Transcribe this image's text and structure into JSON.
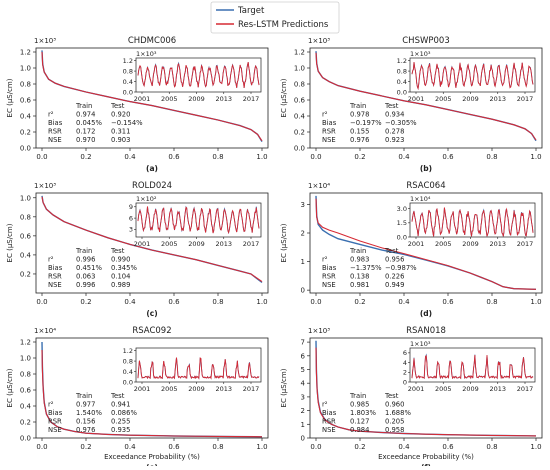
{
  "legend": {
    "items": [
      {
        "label": "Target",
        "color": "#3a6fb0"
      },
      {
        "label": "Res-LSTM Predictions",
        "color": "#d62a34"
      }
    ]
  },
  "colors": {
    "target": "#3a6fb0",
    "prediction": "#d62a34"
  },
  "stats_labels": {
    "train": "Train",
    "test": "Test",
    "rows": [
      "r²",
      "Bias",
      "RSR",
      "NSE"
    ]
  },
  "chart_data": [
    {
      "type": "line",
      "panel": "(a)",
      "title": "CHDMC006",
      "exponent": "1×10³",
      "xlabel": "",
      "ylabel": "EC (µS/cm)",
      "xlim": [
        0,
        1
      ],
      "xticks": [
        "0.0",
        "0.2",
        "0.4",
        "0.6",
        "0.8",
        "1.0"
      ],
      "ylim": [
        0,
        1.25
      ],
      "yticks": [
        "0.0",
        "0.2",
        "0.4",
        "0.6",
        "0.8",
        "1.0",
        "1.2"
      ],
      "series": [
        {
          "name": "Target",
          "x": [
            0,
            0.003,
            0.01,
            0.03,
            0.06,
            0.1,
            0.2,
            0.3,
            0.4,
            0.5,
            0.6,
            0.7,
            0.8,
            0.9,
            0.95,
            0.98,
            1.0
          ],
          "y": [
            1.22,
            1.05,
            0.95,
            0.86,
            0.81,
            0.77,
            0.7,
            0.64,
            0.58,
            0.53,
            0.47,
            0.41,
            0.35,
            0.28,
            0.23,
            0.17,
            0.08
          ]
        },
        {
          "name": "Res-LSTM Predictions",
          "x": [
            0,
            0.003,
            0.01,
            0.03,
            0.06,
            0.1,
            0.2,
            0.3,
            0.4,
            0.5,
            0.6,
            0.7,
            0.8,
            0.9,
            0.95,
            0.98,
            1.0
          ],
          "y": [
            1.2,
            1.04,
            0.95,
            0.86,
            0.81,
            0.77,
            0.7,
            0.64,
            0.58,
            0.53,
            0.47,
            0.41,
            0.35,
            0.28,
            0.23,
            0.17,
            0.09
          ]
        }
      ],
      "stats": {
        "r2": [
          "0.974",
          "0.920"
        ],
        "bias": [
          "0.045%",
          "−0.154%"
        ],
        "rsr": [
          "0.172",
          "0.311"
        ],
        "nse": [
          "0.970",
          "0.903"
        ]
      },
      "inset": {
        "exponent": "1×10³",
        "xticks": [
          "2001",
          "2005",
          "2009",
          "2013",
          "2017"
        ],
        "yticks": [
          "0.0",
          "0.4",
          "0.8",
          "1.2"
        ],
        "ylim": [
          0,
          1.3
        ],
        "base": 0.62,
        "amp": 0.42,
        "seed": 3
      }
    },
    {
      "type": "line",
      "panel": "(b)",
      "title": "CHSWP003",
      "exponent": "1×10³",
      "xlabel": "",
      "ylabel": "EC (µS/cm)",
      "xlim": [
        0,
        1
      ],
      "xticks": [
        "0.0",
        "0.2",
        "0.4",
        "0.6",
        "0.8",
        "1.0"
      ],
      "ylim": [
        0,
        1.25
      ],
      "yticks": [
        "0.0",
        "0.2",
        "0.4",
        "0.6",
        "0.8",
        "1.0",
        "1.2"
      ],
      "series": [
        {
          "name": "Target",
          "x": [
            0,
            0.003,
            0.01,
            0.03,
            0.06,
            0.1,
            0.2,
            0.3,
            0.4,
            0.5,
            0.6,
            0.7,
            0.8,
            0.9,
            0.95,
            0.98,
            1.0
          ],
          "y": [
            1.21,
            1.06,
            0.96,
            0.88,
            0.83,
            0.78,
            0.71,
            0.65,
            0.59,
            0.54,
            0.48,
            0.42,
            0.36,
            0.29,
            0.24,
            0.18,
            0.09
          ]
        },
        {
          "name": "Res-LSTM Predictions",
          "x": [
            0,
            0.003,
            0.01,
            0.03,
            0.06,
            0.1,
            0.2,
            0.3,
            0.4,
            0.5,
            0.6,
            0.7,
            0.8,
            0.9,
            0.95,
            0.98,
            1.0
          ],
          "y": [
            1.19,
            1.05,
            0.96,
            0.88,
            0.83,
            0.78,
            0.71,
            0.65,
            0.59,
            0.54,
            0.48,
            0.42,
            0.36,
            0.29,
            0.24,
            0.18,
            0.1
          ]
        }
      ],
      "stats": {
        "r2": [
          "0.978",
          "0.934"
        ],
        "bias": [
          "−0.197%",
          "−0.305%"
        ],
        "rsr": [
          "0.155",
          "0.278"
        ],
        "nse": [
          "0.976",
          "0.923"
        ]
      },
      "inset": {
        "exponent": "1×10³",
        "xticks": [
          "2001",
          "2005",
          "2009",
          "2013",
          "2017"
        ],
        "yticks": [
          "0.0",
          "0.4",
          "0.8",
          "1.2"
        ],
        "ylim": [
          0,
          1.3
        ],
        "base": 0.63,
        "amp": 0.42,
        "seed": 7
      }
    },
    {
      "type": "line",
      "panel": "(c)",
      "title": "ROLD024",
      "exponent": "1×10³",
      "xlabel": "",
      "ylabel": "EC (µS/cm)",
      "xlim": [
        0,
        1
      ],
      "xticks": [
        "0.0",
        "0.2",
        "0.4",
        "0.6",
        "0.8",
        "1.0"
      ],
      "ylim": [
        0,
        1.05
      ],
      "yticks": [
        "0.2",
        "0.4",
        "0.6",
        "0.8",
        "1.0"
      ],
      "series": [
        {
          "name": "Target",
          "x": [
            0,
            0.005,
            0.02,
            0.05,
            0.1,
            0.2,
            0.3,
            0.4,
            0.5,
            0.6,
            0.7,
            0.8,
            0.9,
            0.95,
            1.0
          ],
          "y": [
            1.02,
            0.95,
            0.88,
            0.82,
            0.75,
            0.66,
            0.58,
            0.51,
            0.45,
            0.4,
            0.35,
            0.29,
            0.23,
            0.2,
            0.11
          ]
        },
        {
          "name": "Res-LSTM Predictions",
          "x": [
            0,
            0.005,
            0.02,
            0.05,
            0.1,
            0.2,
            0.3,
            0.4,
            0.5,
            0.6,
            0.7,
            0.8,
            0.9,
            0.95,
            1.0
          ],
          "y": [
            1.01,
            0.95,
            0.88,
            0.82,
            0.75,
            0.66,
            0.58,
            0.51,
            0.45,
            0.4,
            0.35,
            0.29,
            0.23,
            0.2,
            0.12
          ]
        }
      ],
      "stats": {
        "r2": [
          "0.996",
          "0.990"
        ],
        "bias": [
          "0.451%",
          "0.345%"
        ],
        "rsr": [
          "0.063",
          "0.104"
        ],
        "nse": [
          "0.996",
          "0.989"
        ]
      },
      "inset": {
        "exponent": "1×10²",
        "xticks": [
          "2001",
          "2005",
          "2009",
          "2013",
          "2017"
        ],
        "yticks": [
          "3",
          "6",
          "9"
        ],
        "ylim": [
          1,
          10
        ],
        "base": 5.5,
        "amp": 3.2,
        "seed": 11
      }
    },
    {
      "type": "line",
      "panel": "(d)",
      "title": "RSAC064",
      "exponent": "1×10⁴",
      "xlabel": "",
      "ylabel": "EC (µS/cm)",
      "xlim": [
        0,
        1
      ],
      "xticks": [
        "0.0",
        "0.2",
        "0.4",
        "0.6",
        "0.8",
        "1.0"
      ],
      "ylim": [
        -0.1,
        3.4
      ],
      "yticks": [
        "0",
        "1",
        "2",
        "3"
      ],
      "series": [
        {
          "name": "Target",
          "x": [
            0,
            0.003,
            0.01,
            0.03,
            0.06,
            0.1,
            0.2,
            0.3,
            0.4,
            0.5,
            0.6,
            0.7,
            0.75,
            0.8,
            0.85,
            0.9,
            1.0
          ],
          "y": [
            3.3,
            2.6,
            2.3,
            2.1,
            1.95,
            1.8,
            1.6,
            1.4,
            1.25,
            1.05,
            0.85,
            0.6,
            0.45,
            0.3,
            0.12,
            0.05,
            0.03
          ]
        },
        {
          "name": "Res-LSTM Predictions",
          "x": [
            0,
            0.003,
            0.01,
            0.03,
            0.06,
            0.1,
            0.2,
            0.3,
            0.4,
            0.5,
            0.6,
            0.7,
            0.75,
            0.8,
            0.85,
            0.9,
            1.0
          ],
          "y": [
            3.2,
            2.55,
            2.35,
            2.2,
            2.1,
            2.0,
            1.72,
            1.48,
            1.28,
            1.07,
            0.86,
            0.6,
            0.45,
            0.3,
            0.12,
            0.05,
            0.03
          ]
        }
      ],
      "stats": {
        "r2": [
          "0.983",
          "0.956"
        ],
        "bias": [
          "−1.375%",
          "−0.987%"
        ],
        "rsr": [
          "0.138",
          "0.226"
        ],
        "nse": [
          "0.981",
          "0.949"
        ]
      },
      "inset": {
        "exponent": "1×10⁴",
        "xticks": [
          "2001",
          "2005",
          "2009",
          "2013",
          "2017"
        ],
        "yticks": [
          "0.0",
          "1.5",
          "3.0"
        ],
        "ylim": [
          0,
          3.6
        ],
        "base": 1.5,
        "amp": 1.4,
        "seed": 17
      }
    },
    {
      "type": "line",
      "panel": "(e)",
      "title": "RSAC092",
      "exponent": "1×10⁴",
      "xlabel": "Exceedance Probability (%)",
      "ylabel": "EC (µS/cm)",
      "xlim": [
        0,
        1
      ],
      "xticks": [
        "0.0",
        "0.2",
        "0.4",
        "0.6",
        "0.8",
        "1.0"
      ],
      "ylim": [
        0,
        1.25
      ],
      "yticks": [
        "0.0",
        "0.2",
        "0.4",
        "0.6",
        "0.8",
        "1.0",
        "1.2"
      ],
      "series": [
        {
          "name": "Target",
          "x": [
            0,
            0.002,
            0.005,
            0.01,
            0.02,
            0.04,
            0.07,
            0.1,
            0.15,
            0.2,
            0.3,
            0.4,
            0.5,
            0.6,
            0.8,
            1.0
          ],
          "y": [
            1.2,
            0.9,
            0.65,
            0.45,
            0.3,
            0.2,
            0.14,
            0.11,
            0.08,
            0.06,
            0.045,
            0.035,
            0.03,
            0.025,
            0.02,
            0.015
          ]
        },
        {
          "name": "Res-LSTM Predictions",
          "x": [
            0,
            0.002,
            0.005,
            0.01,
            0.02,
            0.04,
            0.07,
            0.1,
            0.15,
            0.2,
            0.3,
            0.4,
            0.5,
            0.6,
            0.8,
            1.0
          ],
          "y": [
            1.1,
            0.85,
            0.63,
            0.44,
            0.3,
            0.2,
            0.14,
            0.11,
            0.08,
            0.06,
            0.045,
            0.035,
            0.03,
            0.025,
            0.02,
            0.015
          ]
        }
      ],
      "stats": {
        "r2": [
          "0.977",
          "0.941"
        ],
        "bias": [
          "1.540%",
          "0.086%"
        ],
        "rsr": [
          "0.156",
          "0.255"
        ],
        "nse": [
          "0.976",
          "0.935"
        ]
      },
      "inset": {
        "exponent": "",
        "xticks": [
          "2001",
          "2005",
          "2009",
          "2013",
          "2017"
        ],
        "yticks": [
          "0.0",
          "0.4",
          "0.8",
          "1.2"
        ],
        "ylim": [
          0,
          1.3
        ],
        "base": 0.15,
        "amp": 0.75,
        "seed": 23,
        "spiky": true
      }
    },
    {
      "type": "line",
      "panel": "(f)",
      "title": "RSAN018",
      "exponent": "1×10³",
      "xlabel": "Exceedance Probability (%)",
      "ylabel": "EC (µS/cm)",
      "xlim": [
        0,
        1
      ],
      "xticks": [
        "0.0",
        "0.2",
        "0.4",
        "0.6",
        "0.8",
        "1.0"
      ],
      "ylim": [
        0,
        7.3
      ],
      "yticks": [
        "0",
        "1",
        "2",
        "3",
        "4",
        "5",
        "6",
        "7"
      ],
      "series": [
        {
          "name": "Target",
          "x": [
            0,
            0.002,
            0.005,
            0.01,
            0.02,
            0.04,
            0.07,
            0.1,
            0.15,
            0.2,
            0.3,
            0.4,
            0.5,
            0.6,
            0.8,
            1.0
          ],
          "y": [
            7.1,
            5.0,
            3.6,
            2.7,
            1.9,
            1.35,
            1.0,
            0.8,
            0.6,
            0.5,
            0.4,
            0.33,
            0.28,
            0.24,
            0.19,
            0.15
          ]
        },
        {
          "name": "Res-LSTM Predictions",
          "x": [
            0,
            0.002,
            0.005,
            0.01,
            0.02,
            0.04,
            0.07,
            0.1,
            0.15,
            0.2,
            0.3,
            0.4,
            0.5,
            0.6,
            0.8,
            1.0
          ],
          "y": [
            6.6,
            4.8,
            3.5,
            2.6,
            1.85,
            1.33,
            1.0,
            0.8,
            0.6,
            0.5,
            0.4,
            0.33,
            0.28,
            0.24,
            0.19,
            0.15
          ]
        }
      ],
      "stats": {
        "r2": [
          "0.985",
          "0.960"
        ],
        "bias": [
          "1.803%",
          "1.688%"
        ],
        "rsr": [
          "0.127",
          "0.205"
        ],
        "nse": [
          "0.984",
          "0.958"
        ]
      },
      "inset": {
        "exponent": "1×10³",
        "xticks": [
          "2001",
          "2005",
          "2009",
          "2013",
          "2017"
        ],
        "yticks": [
          "0",
          "2",
          "4",
          "6"
        ],
        "ylim": [
          0,
          7
        ],
        "base": 0.8,
        "amp": 4.5,
        "seed": 31,
        "spiky": true
      }
    }
  ]
}
